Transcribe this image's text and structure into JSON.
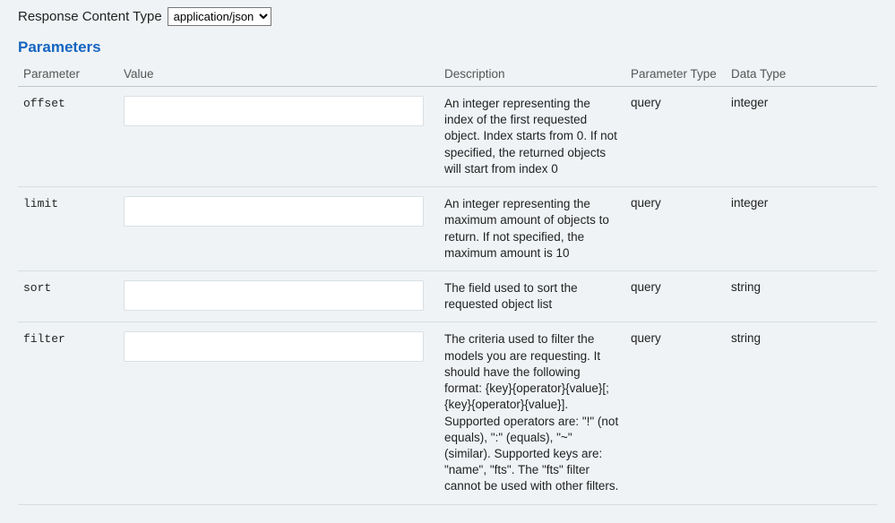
{
  "contentType": {
    "label": "Response Content Type",
    "selected": "application/json",
    "options": [
      "application/json"
    ]
  },
  "sectionHeading": "Parameters",
  "columns": {
    "parameter": "Parameter",
    "value": "Value",
    "description": "Description",
    "parameterType": "Parameter Type",
    "dataType": "Data Type"
  },
  "rows": [
    {
      "name": "offset",
      "value": "",
      "description": "An integer representing the index of the first requested object. Index starts from 0. If not specified, the returned objects will start from index 0",
      "parameterType": "query",
      "dataType": "integer"
    },
    {
      "name": "limit",
      "value": "",
      "description": "An integer representing the maximum amount of objects to return. If not specified, the maximum amount is 10",
      "parameterType": "query",
      "dataType": "integer"
    },
    {
      "name": "sort",
      "value": "",
      "description": "The field used to sort the requested object list",
      "parameterType": "query",
      "dataType": "string"
    },
    {
      "name": "filter",
      "value": "",
      "description": "The criteria used to filter the models you are requesting. It should have the following format: {key}{operator}{value}[;{key}{operator}{value}]. Supported operators are: \"!\" (not equals), \":\" (equals), \"~\" (similar). Supported keys are: \"name\", \"fts\". The \"fts\" filter cannot be used with other filters.",
      "parameterType": "query",
      "dataType": "string"
    }
  ],
  "colors": {
    "background": "#eff3f5",
    "heading": "#1565c0",
    "headerBorder": "#bfc7cc",
    "rowBorder": "#d7dde1",
    "inputBg": "#ffffff",
    "text": "#222222",
    "muted": "#555555"
  }
}
